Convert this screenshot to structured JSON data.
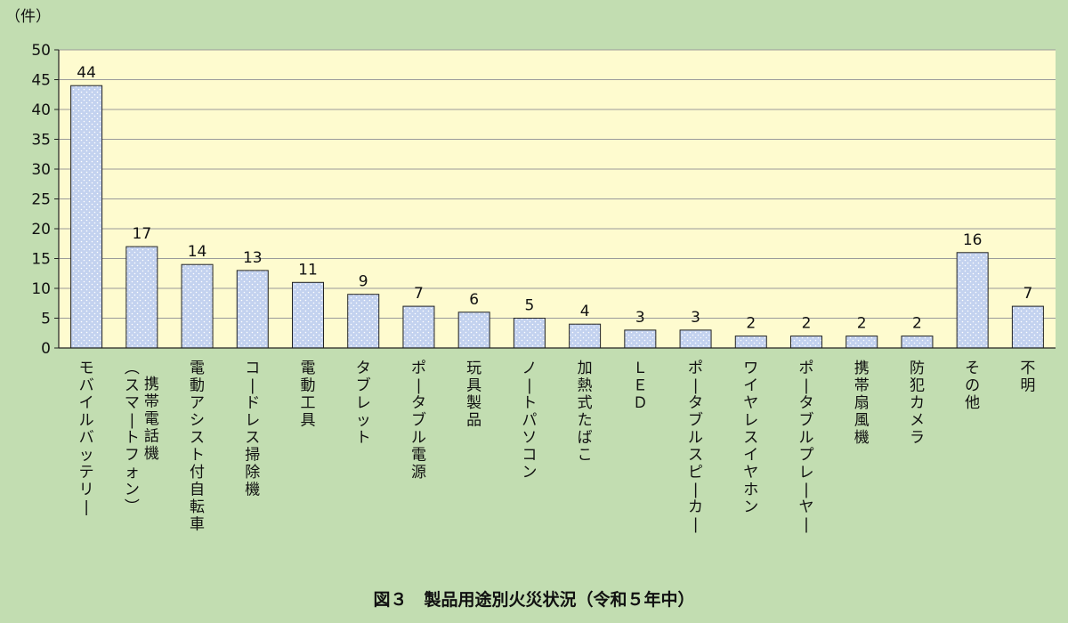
{
  "chart_data": {
    "type": "bar",
    "unit_label": "（件）",
    "caption": "図３　製品用途別火災状況（令和５年中）",
    "ylim": [
      0,
      50
    ],
    "yticks": [
      0,
      5,
      10,
      15,
      20,
      25,
      30,
      35,
      40,
      45,
      50
    ],
    "grid": true,
    "categories": [
      "モバイルバッテリー",
      "携帯電話機（スマートフォン）",
      "電動アシスト付自転車",
      "コードレス掃除機",
      "電動工具",
      "タブレット",
      "ポータブル電源",
      "玩具製品",
      "ノートパソコン",
      "加熱式たばこ",
      "ＬＥＤ",
      "ポータブルスピーカー",
      "ワイヤレスイヤホン",
      "ポータブルプレーヤー",
      "携帯扇風機",
      "防犯カメラ",
      "その他",
      "不明"
    ],
    "category_label_columns": [
      [
        "モバイルバッテリー"
      ],
      [
        "（スマートフォン）",
        "携帯電話機"
      ],
      [
        "電動アシスト付自転車"
      ],
      [
        "コードレス掃除機"
      ],
      [
        "電動工具"
      ],
      [
        "タブレット"
      ],
      [
        "ポータブル電源"
      ],
      [
        "玩具製品"
      ],
      [
        "ノートパソコン"
      ],
      [
        "加熱式たばこ"
      ],
      [
        "ＬＥＤ"
      ],
      [
        "ポータブルスピーカー"
      ],
      [
        "ワイヤレスイヤホン"
      ],
      [
        "ポータブルプレーヤー"
      ],
      [
        "携帯扇風機"
      ],
      [
        "防犯カメラ"
      ],
      [
        "その他"
      ],
      [
        "不明"
      ]
    ],
    "values": [
      44,
      17,
      14,
      13,
      11,
      9,
      7,
      6,
      5,
      4,
      3,
      3,
      2,
      2,
      2,
      2,
      16,
      7
    ],
    "colors": {
      "background": "#c2ddb1",
      "plot_area": "#fefbcf",
      "bar_fill": "#c3d2ef",
      "bar_dots": "#ffffff",
      "bar_stroke": "#222222"
    }
  }
}
